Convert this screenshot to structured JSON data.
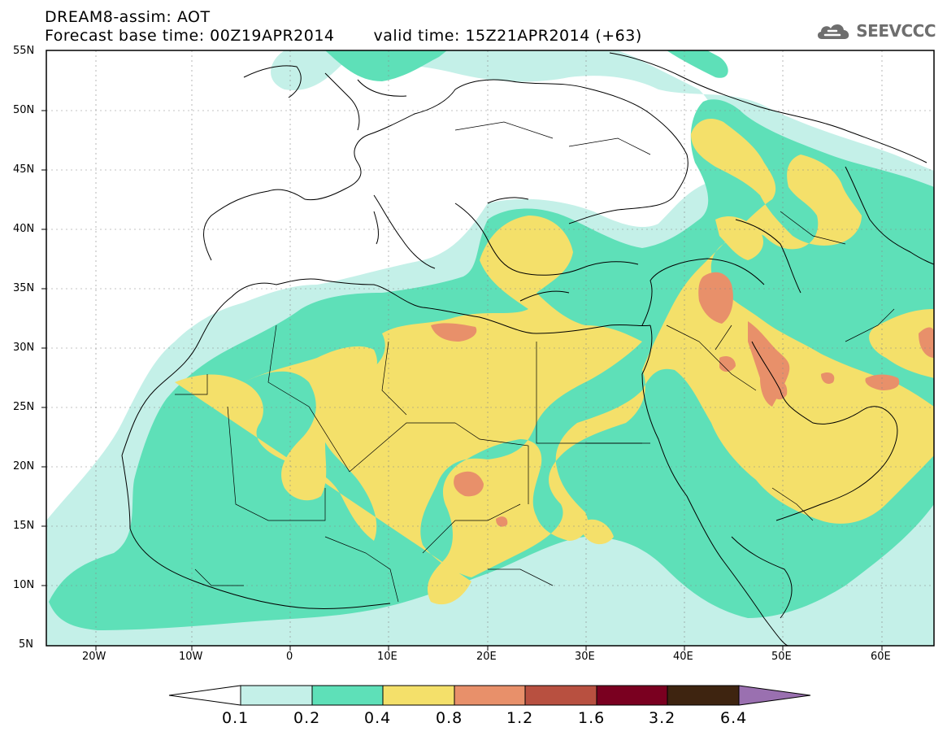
{
  "header": {
    "title_line1": "DREAM8-assim: AOT",
    "base_time": "Forecast base time: 00Z19APR2014",
    "valid_time": "valid time: 15Z21APR2014 (+63)",
    "logo_text": "SEEVCCC"
  },
  "axes": {
    "lat_labels": [
      "55N",
      "50N",
      "45N",
      "40N",
      "35N",
      "30N",
      "25N",
      "20N",
      "15N",
      "10N",
      "5N"
    ],
    "lon_labels": [
      "20W",
      "10W",
      "0",
      "10E",
      "20E",
      "30E",
      "40E",
      "50E",
      "60E"
    ],
    "lat_range": [
      5,
      55
    ],
    "lon_range": [
      -25,
      65
    ]
  },
  "colorbar": {
    "labels": [
      "0.1",
      "0.2",
      "0.4",
      "0.8",
      "1.2",
      "1.6",
      "3.2",
      "6.4"
    ],
    "colors": [
      "#ffffff",
      "#c4f0e8",
      "#5ee0b8",
      "#f4e06a",
      "#e8906a",
      "#b85040",
      "#7a0020",
      "#3e2410",
      "#9a70b0"
    ]
  },
  "colors": {
    "ocean_land": "#ffffff",
    "aot_0_1": "#c4f0e8",
    "aot_0_2": "#5ee0b8",
    "aot_0_4": "#f4e06a",
    "aot_0_8": "#e8906a",
    "coast": "#000000"
  }
}
